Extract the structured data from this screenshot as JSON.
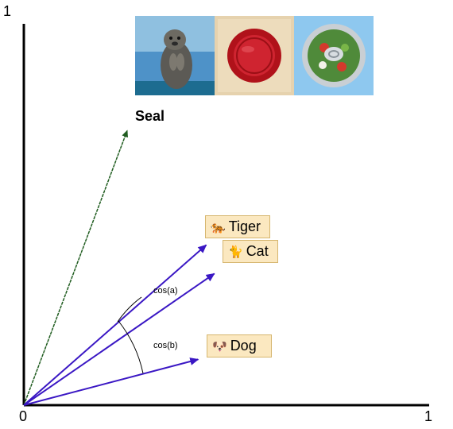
{
  "axis": {
    "origin_label": "0",
    "x_max_label": "1",
    "y_max_label": "1"
  },
  "vectors": [
    {
      "name": "seal",
      "label": "Seal",
      "color": "#1f5c1f",
      "end": [
        0.255,
        0.72
      ]
    },
    {
      "name": "tiger",
      "label": "Tiger",
      "emoji": "🐅",
      "color": "#3a17c4",
      "end": [
        0.45,
        0.42
      ]
    },
    {
      "name": "cat",
      "label": "Cat",
      "emoji": "🐈",
      "color": "#3a17c4",
      "end": [
        0.47,
        0.345
      ]
    },
    {
      "name": "dog",
      "label": "Dog",
      "emoji": "🐶",
      "color": "#3a17c4",
      "end": [
        0.43,
        0.12
      ]
    }
  ],
  "angles": {
    "a": "cos(a)",
    "b": "cos(b)"
  },
  "images": [
    {
      "name": "seal-photo-icon"
    },
    {
      "name": "wax-seal-icon"
    },
    {
      "name": "canned-food-icon"
    }
  ]
}
